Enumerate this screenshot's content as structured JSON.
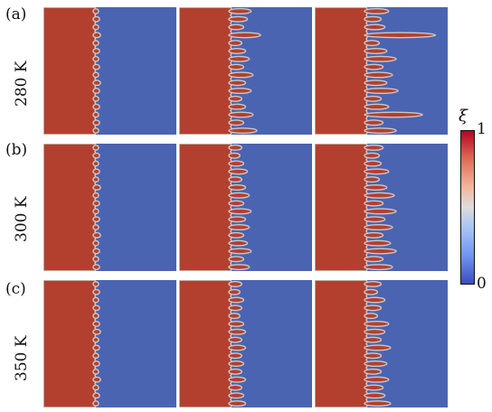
{
  "figure": {
    "rows": [
      {
        "label": "(a)",
        "temperature": "280 K",
        "panels": [
          {
            "fingers": [
              0.02,
              0.03,
              0.02,
              0.04,
              0.02,
              0.03,
              0.02,
              0.03,
              0.02,
              0.04,
              0.03,
              0.02,
              0.03,
              0.02,
              0.03,
              0.02
            ]
          },
          {
            "fingers": [
              0.2,
              0.16,
              0.12,
              0.3,
              0.1,
              0.14,
              0.18,
              0.12,
              0.22,
              0.14,
              0.2,
              0.1,
              0.14,
              0.22,
              0.12,
              0.26
            ]
          },
          {
            "fingers": [
              0.22,
              0.14,
              0.18,
              0.72,
              0.12,
              0.2,
              0.3,
              0.16,
              0.26,
              0.2,
              0.32,
              0.14,
              0.22,
              0.58,
              0.16,
              0.3
            ]
          }
        ]
      },
      {
        "label": "(b)",
        "temperature": "300 K",
        "panels": [
          {
            "fingers": [
              0.02,
              0.03,
              0.02,
              0.03,
              0.02,
              0.04,
              0.02,
              0.03,
              0.02,
              0.03,
              0.02,
              0.04,
              0.02,
              0.03,
              0.02,
              0.03
            ]
          },
          {
            "fingers": [
              0.1,
              0.08,
              0.12,
              0.16,
              0.1,
              0.14,
              0.18,
              0.12,
              0.2,
              0.14,
              0.18,
              0.12,
              0.16,
              0.2,
              0.12,
              0.18
            ]
          },
          {
            "fingers": [
              0.16,
              0.12,
              0.14,
              0.22,
              0.12,
              0.2,
              0.28,
              0.16,
              0.3,
              0.18,
              0.26,
              0.16,
              0.24,
              0.3,
              0.16,
              0.26
            ]
          }
        ]
      },
      {
        "label": "(c)",
        "temperature": "350 K",
        "panels": [
          {
            "fingers": [
              0.02,
              0.03,
              0.02,
              0.03,
              0.02,
              0.03,
              0.04,
              0.02,
              0.03,
              0.02,
              0.03,
              0.02,
              0.04,
              0.02,
              0.03,
              0.02
            ]
          },
          {
            "fingers": [
              0.1,
              0.08,
              0.12,
              0.1,
              0.08,
              0.12,
              0.14,
              0.1,
              0.14,
              0.1,
              0.12,
              0.1,
              0.14,
              0.1,
              0.12,
              0.14
            ]
          },
          {
            "fingers": [
              0.14,
              0.1,
              0.18,
              0.14,
              0.1,
              0.22,
              0.18,
              0.14,
              0.24,
              0.14,
              0.2,
              0.14,
              0.22,
              0.16,
              0.18,
              0.24
            ]
          }
        ]
      }
    ],
    "colorbar": {
      "title": "ξ",
      "max_label": "1",
      "min_label": "0"
    },
    "colors": {
      "red": "#b3402e",
      "blue": "#4b64b1",
      "interface": "#c9c9c9"
    }
  }
}
